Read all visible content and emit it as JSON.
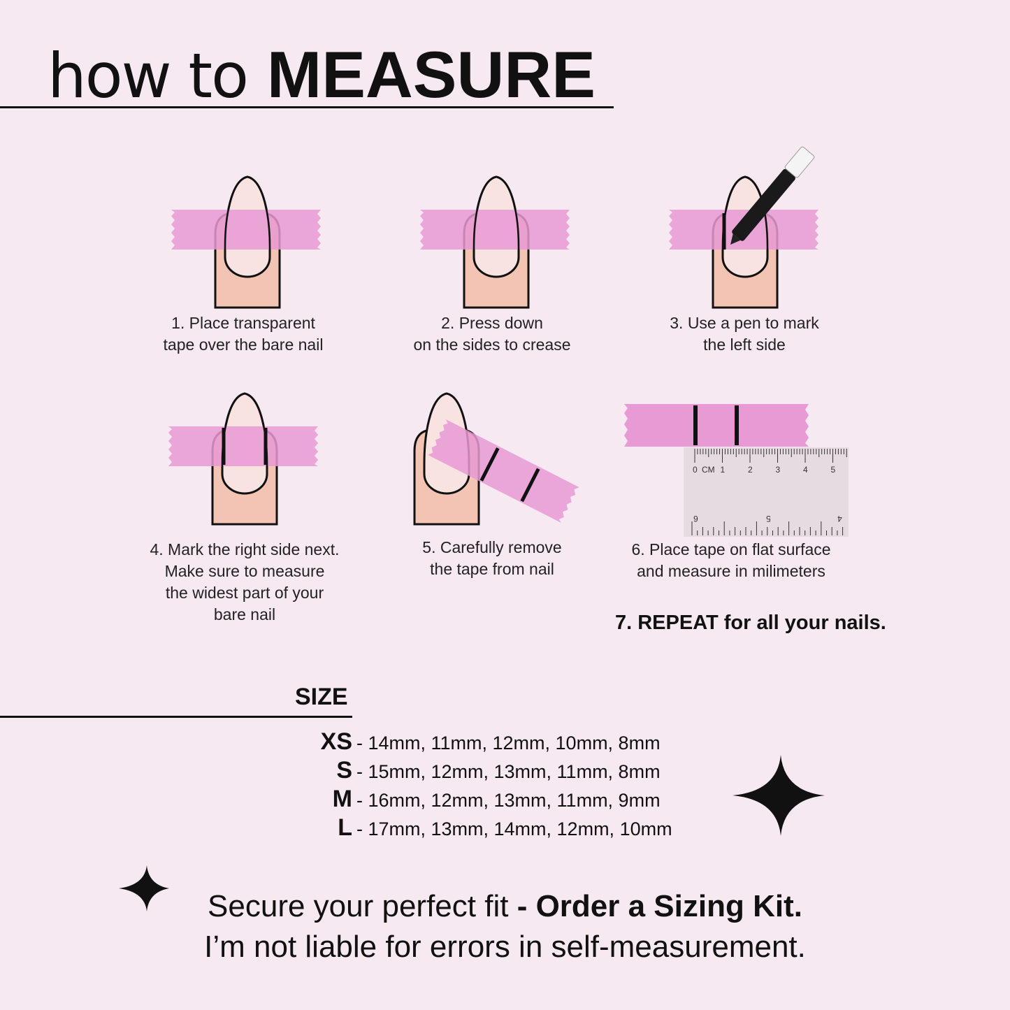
{
  "title": {
    "light": "how to",
    "bold": "MEASURE"
  },
  "colors": {
    "background": "#f6e9f1",
    "tape": "#e79ad4",
    "skin": "#f3c6b6",
    "nail": "#f7e2e2",
    "ink": "#111111"
  },
  "steps": [
    {
      "lines": [
        "1. Place transparent",
        "tape over the bare nail"
      ]
    },
    {
      "lines": [
        "2. Press down",
        "on the sides to crease"
      ]
    },
    {
      "lines": [
        "3. Use a pen to mark",
        "the left side"
      ]
    },
    {
      "lines": [
        "4. Mark the right side next.",
        "Make sure to measure",
        "the widest part of your",
        "bare nail"
      ]
    },
    {
      "lines": [
        "5. Carefully remove",
        "the tape from nail"
      ]
    },
    {
      "lines": [
        "6. Place tape on flat surface",
        "and measure in milimeters"
      ]
    }
  ],
  "repeat": "7. REPEAT for all your nails.",
  "ruler": {
    "unit": "CM",
    "top_labels": [
      "0",
      "1",
      "2",
      "3",
      "4",
      "5"
    ],
    "bottom_labels": [
      "6",
      "5",
      "4"
    ]
  },
  "size": {
    "heading": "SIZE",
    "rows": [
      {
        "label": "XS",
        "values": "- 14mm, 11mm, 12mm, 10mm, 8mm"
      },
      {
        "label": "S",
        "values": "- 15mm, 12mm, 13mm, 11mm, 8mm"
      },
      {
        "label": "M",
        "values": "- 16mm, 12mm, 13mm, 11mm, 9mm"
      },
      {
        "label": "L",
        "values": "- 17mm, 13mm, 14mm, 12mm, 10mm"
      }
    ]
  },
  "footer": {
    "line1_regular": "Secure your perfect fit ",
    "line1_bold": "- Order a Sizing Kit.",
    "line2": "I’m not liable for errors in self-measurement."
  }
}
